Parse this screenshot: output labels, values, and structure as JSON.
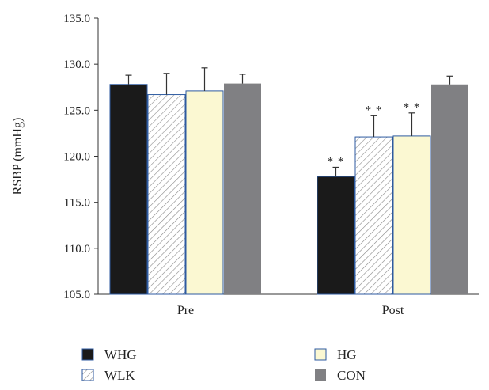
{
  "chart_data": {
    "type": "bar",
    "title": "",
    "xlabel": "",
    "ylabel": "RSBP (mmHg)",
    "ylim": [
      105.0,
      135.0
    ],
    "yticks": [
      "105.0",
      "110.0",
      "115.0",
      "120.0",
      "125.0",
      "130.0",
      "135.0"
    ],
    "categories": [
      "Pre",
      "Post"
    ],
    "series": [
      {
        "name": "WHG",
        "values": [
          127.8,
          117.8
        ],
        "errors": [
          1.0,
          1.0
        ],
        "color": "#1a1a1a",
        "pattern": "solid",
        "annotations": [
          "",
          "**"
        ]
      },
      {
        "name": "WLK",
        "values": [
          126.7,
          122.1
        ],
        "errors": [
          2.3,
          2.3
        ],
        "color": "#ffffff",
        "pattern": "hatch",
        "annotations": [
          "",
          "**"
        ]
      },
      {
        "name": "HG",
        "values": [
          127.1,
          122.2
        ],
        "errors": [
          2.5,
          2.5
        ],
        "color": "#fbf8d2",
        "pattern": "solid",
        "annotations": [
          "",
          "**"
        ]
      },
      {
        "name": "CON",
        "values": [
          127.9,
          127.8
        ],
        "errors": [
          1.0,
          0.9
        ],
        "color": "#808083",
        "pattern": "solid",
        "annotations": [
          "",
          ""
        ]
      }
    ],
    "legend_placement": "bottom"
  }
}
